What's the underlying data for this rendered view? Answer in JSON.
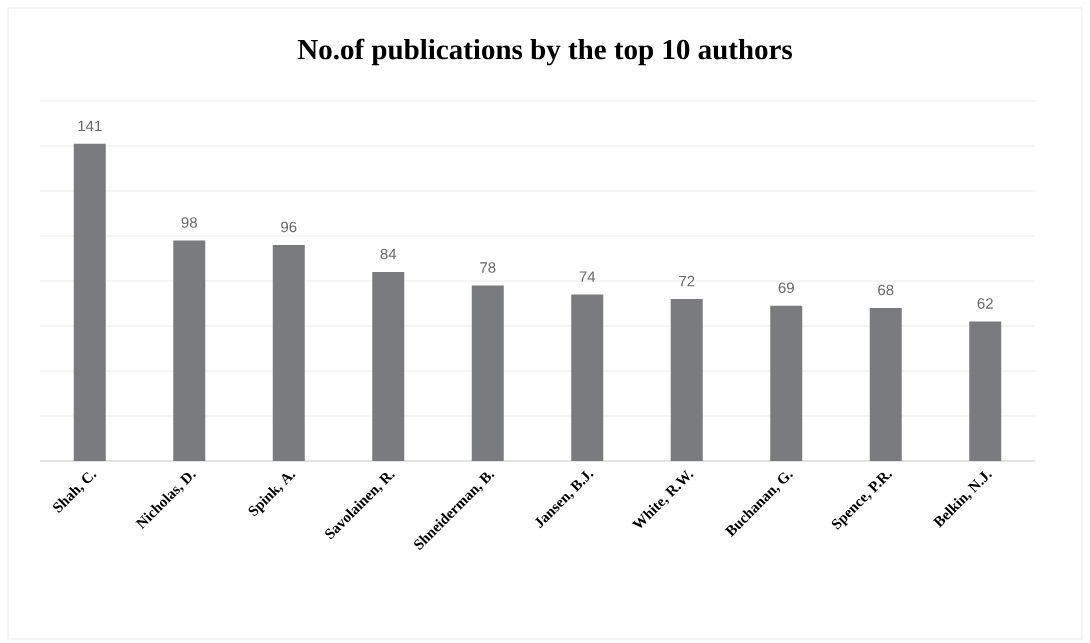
{
  "chart_data": {
    "type": "bar",
    "title": "No.of publications by the top 10 authors",
    "categories": [
      "Shah, C.",
      "Nicholas, D.",
      "Spink, A.",
      "Savolainen, R.",
      "Shneiderman, B.",
      "Jansen, B.J.",
      "White, R.W.",
      "Buchanan, G.",
      "Spence, P.R.",
      "Belkin, N.J."
    ],
    "values": [
      141,
      98,
      96,
      84,
      78,
      74,
      72,
      69,
      68,
      62
    ],
    "color": "#7a7b7e",
    "ylim": [
      0,
      160
    ],
    "yticks": [
      {
        "value": 0,
        "label": null
      },
      {
        "value": 20,
        "label": null
      },
      {
        "value": 40,
        "label": null
      },
      {
        "value": 60,
        "label": null
      },
      {
        "value": 80,
        "label": null
      },
      {
        "value": 100,
        "label": null
      },
      {
        "value": 120,
        "label": null
      },
      {
        "value": 140,
        "label": null
      },
      {
        "value": 160,
        "label": null
      }
    ],
    "tick_labels": "x",
    "grid": "y",
    "data_labels": true
  }
}
